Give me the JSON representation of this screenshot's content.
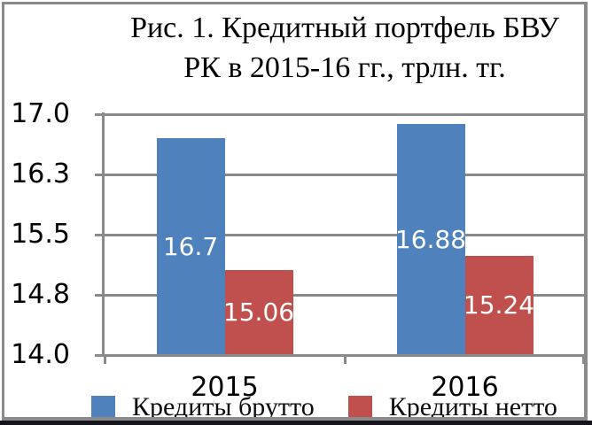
{
  "figure": {
    "background": "#ffffff",
    "border_color": "#8a8a8a",
    "bottom_bar_color": "#14141c"
  },
  "chart_data": {
    "type": "bar",
    "title": "Рис. 1. Кредитный портфель БВУ РК в 2015-16 гг., трлн. тг.",
    "title_lines": [
      "Рис. 1. Кредитный портфель БВУ",
      "РК в 2015-16 гг., трлн. тг."
    ],
    "categories": [
      "2015",
      "2016"
    ],
    "series": [
      {
        "name": "Кредиты брутто",
        "color": "#4f81bd",
        "values": [
          16.7,
          16.88
        ],
        "data_labels": [
          "16.7",
          "16.88"
        ]
      },
      {
        "name": "Кредиты нетто",
        "color": "#c0504d",
        "values": [
          15.06,
          15.24
        ],
        "data_labels": [
          "15.06",
          "15.24"
        ]
      }
    ],
    "ylim": [
      14.0,
      17.0
    ],
    "yticks": [
      {
        "value": 14.0,
        "label": "14.0"
      },
      {
        "value": 14.75,
        "label": "14.8"
      },
      {
        "value": 15.5,
        "label": "15.5"
      },
      {
        "value": 16.25,
        "label": "16.3"
      },
      {
        "value": 17.0,
        "label": "17.0"
      }
    ],
    "grid": true,
    "legend_position": "bottom",
    "data_label_color": "#ffffff",
    "axis_color": "#8a8a8a",
    "gridline_color": "#8a8a8a",
    "text_color": "#000000"
  }
}
